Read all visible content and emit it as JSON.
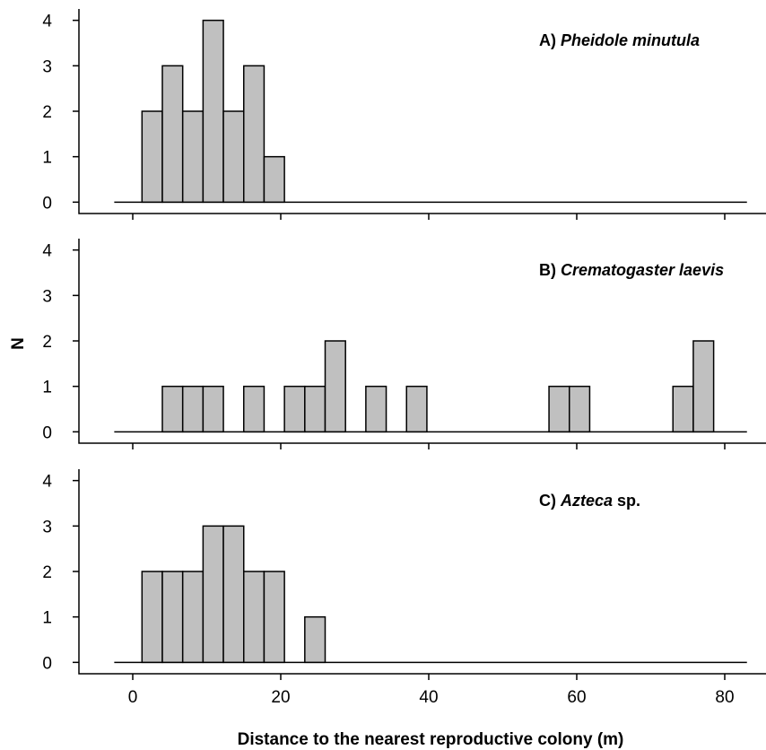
{
  "chart_data": {
    "type": "bar",
    "xlabel": "Distance to the nearest reproductive colony (m)",
    "ylabel": "N",
    "xlim": [
      -7,
      84
    ],
    "xticks": [
      0,
      20,
      40,
      60,
      80
    ],
    "ylim": [
      -0.25,
      4.25
    ],
    "yticks": [
      0,
      1,
      2,
      3,
      4
    ],
    "bin_width": 2.75,
    "baseline_range": [
      -2.5,
      83
    ],
    "panels": [
      {
        "label_prefix": "A)",
        "species": "Pheidole minutula",
        "label_suffix": "",
        "bins": [
          {
            "x0": 1.25,
            "value": 2
          },
          {
            "x0": 4.0,
            "value": 3
          },
          {
            "x0": 6.75,
            "value": 2
          },
          {
            "x0": 9.5,
            "value": 4
          },
          {
            "x0": 12.25,
            "value": 2
          },
          {
            "x0": 15.0,
            "value": 3
          },
          {
            "x0": 17.75,
            "value": 1
          }
        ]
      },
      {
        "label_prefix": "B)",
        "species": "Crematogaster laevis",
        "label_suffix": "",
        "bins": [
          {
            "x0": 4.0,
            "value": 1
          },
          {
            "x0": 6.75,
            "value": 1
          },
          {
            "x0": 9.5,
            "value": 1
          },
          {
            "x0": 15.0,
            "value": 1
          },
          {
            "x0": 20.5,
            "value": 1
          },
          {
            "x0": 23.25,
            "value": 1
          },
          {
            "x0": 26.0,
            "value": 2
          },
          {
            "x0": 31.5,
            "value": 1
          },
          {
            "x0": 37.0,
            "value": 1
          },
          {
            "x0": 56.25,
            "value": 1
          },
          {
            "x0": 59.0,
            "value": 1
          },
          {
            "x0": 73.0,
            "value": 1
          },
          {
            "x0": 75.75,
            "value": 2
          }
        ]
      },
      {
        "label_prefix": "C)",
        "species": "Azteca",
        "label_suffix": " sp.",
        "bins": [
          {
            "x0": 1.25,
            "value": 2
          },
          {
            "x0": 4.0,
            "value": 2
          },
          {
            "x0": 6.75,
            "value": 2
          },
          {
            "x0": 9.5,
            "value": 3
          },
          {
            "x0": 12.25,
            "value": 3
          },
          {
            "x0": 15.0,
            "value": 2
          },
          {
            "x0": 17.75,
            "value": 2
          },
          {
            "x0": 23.25,
            "value": 1
          }
        ]
      }
    ]
  }
}
